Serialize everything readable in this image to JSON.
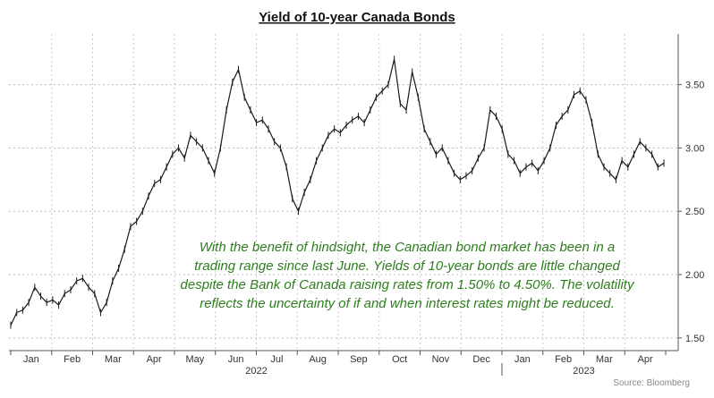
{
  "chart_data": {
    "type": "line",
    "title": "Yield of 10-year Canada Bonds",
    "ylim": [
      1.4,
      3.9
    ],
    "yticks": [
      "3.50",
      "3.00",
      "2.50",
      "2.00",
      "1.50"
    ],
    "ytick_values": [
      3.5,
      3.0,
      2.5,
      2.0,
      1.5
    ],
    "months": [
      "Jan",
      "Feb",
      "Mar",
      "Apr",
      "May",
      "Jun",
      "Jul",
      "Aug",
      "Sep",
      "Oct",
      "Nov",
      "Dec",
      "Jan",
      "Feb",
      "Mar",
      "Apr"
    ],
    "years": [
      "2022",
      "2023"
    ],
    "grid": true,
    "series": [
      {
        "values": [
          1.6,
          1.7,
          1.72,
          1.78,
          1.9,
          1.83,
          1.78,
          1.8,
          1.76,
          1.85,
          1.88,
          1.95,
          1.97,
          1.9,
          1.85,
          1.7,
          1.78,
          1.95,
          2.05,
          2.2,
          2.38,
          2.42,
          2.5,
          2.62,
          2.72,
          2.75,
          2.85,
          2.95,
          3.0,
          2.92,
          3.1,
          3.05,
          3.0,
          2.9,
          2.8,
          3.0,
          3.3,
          3.52,
          3.62,
          3.4,
          3.3,
          3.2,
          3.22,
          3.15,
          3.05,
          3.0,
          2.85,
          2.6,
          2.5,
          2.65,
          2.75,
          2.9,
          3.0,
          3.1,
          3.15,
          3.12,
          3.18,
          3.22,
          3.25,
          3.2,
          3.3,
          3.4,
          3.45,
          3.5,
          3.7,
          3.35,
          3.3,
          3.6,
          3.4,
          3.15,
          3.05,
          2.95,
          3.0,
          2.9,
          2.8,
          2.75,
          2.78,
          2.82,
          2.92,
          3.0,
          3.3,
          3.25,
          3.15,
          2.95,
          2.9,
          2.8,
          2.85,
          2.88,
          2.82,
          2.9,
          3.0,
          3.18,
          3.25,
          3.3,
          3.42,
          3.45,
          3.38,
          3.2,
          2.95,
          2.85,
          2.8,
          2.75,
          2.9,
          2.85,
          2.95,
          3.05,
          3.0,
          2.95,
          2.85,
          2.88
        ]
      }
    ],
    "annotation": [
      "With the benefit of hindsight, the Canadian bond market has been in a",
      "trading range since last June. Yields of 10-year bonds are little changed",
      "despite the Bank of Canada raising rates from 1.50% to 4.50%. The volatility",
      "reflects the uncertainty of if and when interest rates might be reduced."
    ],
    "annotation_color": "#2e7d1e",
    "source": "Source: Bloomberg"
  }
}
